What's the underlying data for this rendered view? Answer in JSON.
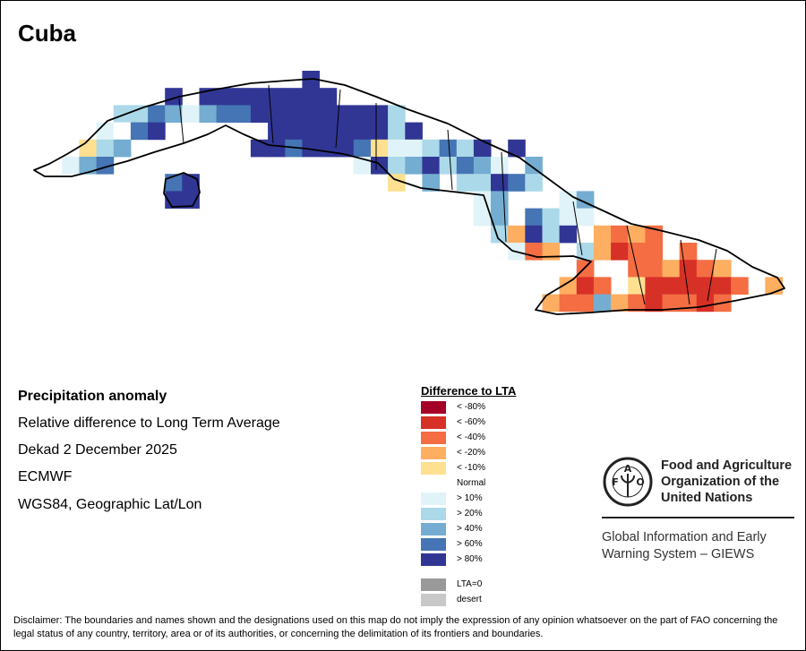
{
  "title": "Cuba",
  "info": {
    "heading": "Precipitation anomaly",
    "subtitle": "Relative difference to Long Term Average",
    "period": "Dekad 2 December 2025",
    "source": "ECMWF",
    "projection": "WGS84, Geographic Lat/Lon"
  },
  "legend": {
    "title": "Difference to LTA",
    "items": [
      {
        "code": "V",
        "label": "< -80%",
        "color": "#a50026"
      },
      {
        "code": "X",
        "label": "< -60%",
        "color": "#d73027"
      },
      {
        "code": "R",
        "label": "< -40%",
        "color": "#f46d43"
      },
      {
        "code": "O",
        "label": "< -20%",
        "color": "#fdae61"
      },
      {
        "code": "Y",
        "label": "< -10%",
        "color": "#fee090"
      },
      {
        "code": "W",
        "label": "Normal",
        "color": "#ffffff"
      },
      {
        "code": "P",
        "label": "> 10%",
        "color": "#e0f3f8"
      },
      {
        "code": "L",
        "label": "> 20%",
        "color": "#abd9e9"
      },
      {
        "code": "M",
        "label": "> 40%",
        "color": "#74add1"
      },
      {
        "code": "B",
        "label": "> 60%",
        "color": "#4575b4"
      },
      {
        "code": "D",
        "label": "> 80%",
        "color": "#313695"
      }
    ],
    "extra": [
      {
        "label": "LTA=0",
        "color": "#999999"
      },
      {
        "label": "desert",
        "color": "#c8c8c8"
      }
    ]
  },
  "map_grid": [
    "..............D............................",
    "......D.DDDDDDDD...........................",
    "...LLBMPMBBDDDDDDDDL.......................",
    "..PWBD......DDDDDDDLD......................",
    ".YLM.......DDBDDDBYPPLBLD.D................",
    "PMB..............PDLMDLBMP.M...............",
    "......BD...........Y.M.LLDBL...............",
    "......DD................PM...PM............",
    "........................PM.BLPP............",
    ".........................LODLD.OROR........",
    "..........................PRO.LOXRR.R......",
    "..............................R..RROXRO....",
    ".............................OXR.YXXXXXR.O.",
    "............................ORRMORXRRXR...."
  ],
  "org": {
    "line1": "Food and Agriculture",
    "line2": "Organization of the",
    "line3": "United Nations",
    "logo_letters": "FAO",
    "logo_motto": "FIAT PANIS",
    "system1": "Global Information and Early",
    "system2": "Warning System – GIEWS"
  },
  "disclaimer": "Disclaimer: The boundaries and names shown and the designations used on this map do not imply the expression of any opinion whatsoever on the part of FAO concerning the legal status of any country, territory, area or of its authorities, or concerning the delimitation of its frontiers and boundaries."
}
